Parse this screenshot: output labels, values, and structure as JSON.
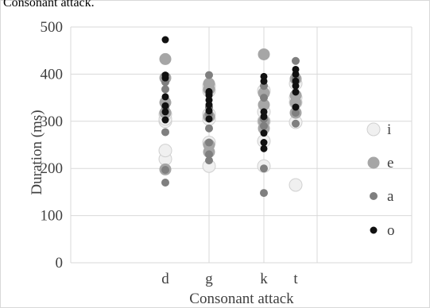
{
  "page": {
    "caption": "Consonant attack."
  },
  "chart_data": {
    "type": "scatter",
    "title": "",
    "xlabel": "Consonant attack",
    "ylabel": "Duration (ms)",
    "categories": [
      "d",
      "g",
      "k",
      "t"
    ],
    "ylim": [
      0,
      500
    ],
    "yticks": [
      0,
      100,
      200,
      300,
      400,
      500
    ],
    "grid": true,
    "legend_position": "right",
    "series": [
      {
        "name": "i",
        "color": "#f0f0f0",
        "stroke": "#d0d0d0",
        "radius": 8,
        "values": [
          [
            220,
            238,
            300,
            305,
            315
          ],
          [
            205,
            255,
            305,
            315,
            365,
            375
          ],
          [
            205,
            258,
            300,
            320,
            365
          ],
          [
            165,
            298,
            340,
            350,
            380
          ]
        ]
      },
      {
        "name": "e",
        "color": "#a6a6a6",
        "stroke": "#a6a6a6",
        "radius": 7,
        "values": [
          [
            198,
            318,
            340,
            392,
            432
          ],
          [
            235,
            250,
            310,
            368,
            380
          ],
          [
            285,
            300,
            335,
            360,
            442
          ],
          [
            318,
            340,
            355,
            390
          ]
        ]
      },
      {
        "name": "a",
        "color": "#7f7f7f",
        "stroke": "#7f7f7f",
        "radius": 4.5,
        "values": [
          [
            170,
            197,
            277,
            330,
            368,
            383
          ],
          [
            217,
            230,
            255,
            285,
            315,
            330,
            360,
            398
          ],
          [
            148,
            200,
            290,
            305,
            350,
            375
          ],
          [
            295,
            318,
            390,
            428
          ]
        ]
      },
      {
        "name": "o",
        "color": "#111111",
        "stroke": "#111111",
        "radius": 4,
        "values": [
          [
            303,
            320,
            333,
            352,
            392,
            398,
            473
          ],
          [
            305,
            322,
            335,
            345,
            355,
            363
          ],
          [
            242,
            255,
            275,
            310,
            320,
            385,
            395
          ],
          [
            330,
            362,
            375,
            385,
            400,
            410
          ]
        ]
      }
    ]
  }
}
